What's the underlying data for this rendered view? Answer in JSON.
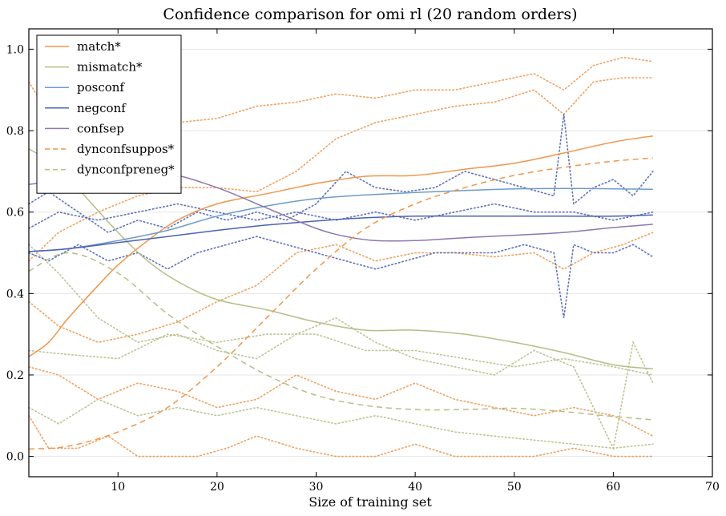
{
  "chart_data": {
    "type": "line",
    "title": "Confidence comparison for omi rl (20 random orders)",
    "xlabel": "Size of training set",
    "ylabel": "",
    "xlim": [
      1,
      70
    ],
    "ylim": [
      -0.05,
      1.05
    ],
    "xticks": [
      "10",
      "20",
      "30",
      "40",
      "50",
      "60",
      "70"
    ],
    "yticks": [
      "0.0",
      "0.2",
      "0.4",
      "0.6",
      "0.8",
      "1.0"
    ],
    "grid": true,
    "legend_position": "top-left",
    "series": [
      {
        "name": "match*",
        "color": "#f0954a",
        "dash": "solid",
        "x": [
          1,
          3,
          5,
          8,
          10,
          13,
          16,
          20,
          25,
          30,
          35,
          40,
          45,
          50,
          55,
          60,
          64
        ],
        "y": [
          0.245,
          0.28,
          0.34,
          0.42,
          0.47,
          0.53,
          0.58,
          0.62,
          0.645,
          0.67,
          0.688,
          0.69,
          0.705,
          0.72,
          0.745,
          0.772,
          0.787
        ]
      },
      {
        "name": "mismatch*",
        "color": "#b5bd86",
        "dash": "solid",
        "x": [
          1,
          4,
          7,
          10,
          13,
          16,
          20,
          25,
          30,
          35,
          40,
          45,
          50,
          55,
          60,
          64
        ],
        "y": [
          0.755,
          0.71,
          0.63,
          0.55,
          0.48,
          0.43,
          0.385,
          0.36,
          0.33,
          0.31,
          0.31,
          0.3,
          0.28,
          0.255,
          0.225,
          0.215
        ]
      },
      {
        "name": "posconf",
        "color": "#6d9cc8",
        "dash": "solid",
        "x": [
          1,
          5,
          10,
          15,
          20,
          25,
          30,
          35,
          40,
          45,
          50,
          55,
          60,
          64
        ],
        "y": [
          0.503,
          0.51,
          0.53,
          0.555,
          0.59,
          0.615,
          0.633,
          0.642,
          0.648,
          0.653,
          0.657,
          0.658,
          0.657,
          0.656
        ]
      },
      {
        "name": "negconf",
        "color": "#4b62b4",
        "dash": "solid",
        "x": [
          1,
          5,
          10,
          15,
          20,
          25,
          30,
          35,
          40,
          45,
          50,
          55,
          60,
          64
        ],
        "y": [
          0.503,
          0.51,
          0.525,
          0.54,
          0.555,
          0.568,
          0.578,
          0.586,
          0.59,
          0.59,
          0.59,
          0.59,
          0.59,
          0.593
        ]
      },
      {
        "name": "confsep",
        "color": "#8a77b0",
        "dash": "solid",
        "x": [
          1,
          5,
          10,
          15,
          20,
          25,
          30,
          33,
          36,
          40,
          45,
          50,
          55,
          60,
          64
        ],
        "y": [
          0.668,
          0.68,
          0.7,
          0.695,
          0.66,
          0.61,
          0.56,
          0.54,
          0.53,
          0.53,
          0.537,
          0.543,
          0.55,
          0.562,
          0.57
        ]
      },
      {
        "name": "dynconfsuppos*",
        "color": "#f0954a",
        "dash": "dashed",
        "x": [
          1,
          5,
          10,
          15,
          20,
          25,
          30,
          35,
          40,
          45,
          50,
          55,
          60,
          64
        ],
        "y": [
          0.018,
          0.025,
          0.06,
          0.12,
          0.22,
          0.34,
          0.46,
          0.56,
          0.62,
          0.66,
          0.69,
          0.71,
          0.725,
          0.733
        ]
      },
      {
        "name": "dynconfpreneg*",
        "color": "#b5bd86",
        "dash": "dashed",
        "x": [
          1,
          5,
          10,
          15,
          20,
          25,
          30,
          35,
          40,
          45,
          50,
          55,
          60,
          64
        ],
        "y": [
          0.455,
          0.5,
          0.45,
          0.35,
          0.27,
          0.2,
          0.15,
          0.125,
          0.115,
          0.115,
          0.118,
          0.11,
          0.098,
          0.09
        ]
      }
    ],
    "background_series": [
      {
        "name": "",
        "color": "#f0954a",
        "x": [
          1,
          4,
          8,
          12,
          16,
          20,
          24,
          28,
          32,
          36,
          40,
          44,
          48,
          52,
          55,
          58,
          61,
          64
        ],
        "y": [
          0.92,
          0.8,
          0.82,
          0.84,
          0.82,
          0.83,
          0.86,
          0.87,
          0.89,
          0.88,
          0.9,
          0.9,
          0.92,
          0.94,
          0.9,
          0.96,
          0.98,
          0.97
        ]
      },
      {
        "name": "",
        "color": "#f0954a",
        "x": [
          1,
          4,
          8,
          12,
          16,
          20,
          24,
          28,
          32,
          36,
          40,
          44,
          48,
          52,
          55,
          58,
          61,
          64
        ],
        "y": [
          0.48,
          0.55,
          0.6,
          0.64,
          0.66,
          0.66,
          0.65,
          0.7,
          0.78,
          0.82,
          0.84,
          0.86,
          0.87,
          0.9,
          0.84,
          0.92,
          0.93,
          0.93
        ]
      },
      {
        "name": "",
        "color": "#f0954a",
        "x": [
          1,
          4,
          8,
          12,
          16,
          20,
          24,
          28,
          32,
          36,
          40,
          44,
          48,
          52,
          55,
          58,
          61,
          64
        ],
        "y": [
          0.38,
          0.32,
          0.28,
          0.3,
          0.33,
          0.38,
          0.42,
          0.5,
          0.52,
          0.48,
          0.5,
          0.5,
          0.49,
          0.5,
          0.46,
          0.5,
          0.52,
          0.55
        ]
      },
      {
        "name": "",
        "color": "#f0954a",
        "x": [
          1,
          3,
          6,
          9,
          12,
          15,
          18,
          21,
          24,
          28,
          32,
          36,
          40,
          44,
          48,
          52,
          56,
          60,
          64
        ],
        "y": [
          0.1,
          0.02,
          0.02,
          0.05,
          0.0,
          0.0,
          0.0,
          0.02,
          0.05,
          0.02,
          0.0,
          0.0,
          0.03,
          0.0,
          0.0,
          0.0,
          0.02,
          0.0,
          0.0
        ]
      },
      {
        "name": "",
        "color": "#f0954a",
        "x": [
          1,
          4,
          8,
          12,
          16,
          20,
          24,
          28,
          32,
          36,
          40,
          44,
          48,
          52,
          56,
          60,
          64
        ],
        "y": [
          0.22,
          0.2,
          0.14,
          0.18,
          0.16,
          0.12,
          0.14,
          0.2,
          0.16,
          0.14,
          0.18,
          0.14,
          0.12,
          0.1,
          0.12,
          0.1,
          0.05
        ]
      },
      {
        "name": "",
        "color": "#b5bd86",
        "x": [
          1,
          4,
          8,
          12,
          16,
          20,
          24,
          28,
          32,
          36,
          40,
          44,
          48,
          52,
          56,
          60,
          62,
          64
        ],
        "y": [
          0.52,
          0.45,
          0.34,
          0.28,
          0.3,
          0.26,
          0.24,
          0.3,
          0.34,
          0.28,
          0.24,
          0.22,
          0.2,
          0.26,
          0.22,
          0.02,
          0.28,
          0.18
        ]
      },
      {
        "name": "",
        "color": "#b5bd86",
        "x": [
          1,
          4,
          8,
          12,
          16,
          20,
          24,
          28,
          32,
          36,
          40,
          44,
          48,
          52,
          56,
          60,
          64
        ],
        "y": [
          0.12,
          0.08,
          0.14,
          0.1,
          0.12,
          0.1,
          0.12,
          0.1,
          0.08,
          0.1,
          0.08,
          0.06,
          0.05,
          0.04,
          0.03,
          0.02,
          0.03
        ]
      },
      {
        "name": "",
        "color": "#b5bd86",
        "x": [
          1,
          5,
          10,
          15,
          20,
          25,
          30,
          35,
          40,
          45,
          50,
          55,
          60,
          64
        ],
        "y": [
          0.26,
          0.25,
          0.24,
          0.3,
          0.28,
          0.3,
          0.3,
          0.26,
          0.26,
          0.24,
          0.22,
          0.24,
          0.22,
          0.2
        ]
      },
      {
        "name": "",
        "color": "#4b62b4",
        "x": [
          1,
          3,
          6,
          9,
          12,
          15,
          18,
          21,
          24,
          27,
          30,
          33,
          36,
          39,
          42,
          45,
          48,
          51,
          54,
          55,
          56,
          58,
          60,
          62,
          64
        ],
        "y": [
          0.62,
          0.65,
          0.6,
          0.55,
          0.58,
          0.56,
          0.6,
          0.58,
          0.6,
          0.58,
          0.62,
          0.7,
          0.66,
          0.65,
          0.66,
          0.7,
          0.68,
          0.66,
          0.64,
          0.84,
          0.62,
          0.66,
          0.68,
          0.64,
          0.7
        ]
      },
      {
        "name": "",
        "color": "#4b62b4",
        "x": [
          1,
          3,
          6,
          9,
          12,
          15,
          18,
          21,
          24,
          27,
          30,
          33,
          36,
          39,
          42,
          45,
          48,
          51,
          54,
          55,
          56,
          58,
          60,
          62,
          64
        ],
        "y": [
          0.5,
          0.48,
          0.52,
          0.48,
          0.5,
          0.46,
          0.5,
          0.52,
          0.54,
          0.52,
          0.5,
          0.48,
          0.46,
          0.48,
          0.5,
          0.5,
          0.5,
          0.52,
          0.5,
          0.34,
          0.52,
          0.5,
          0.5,
          0.52,
          0.49
        ]
      },
      {
        "name": "",
        "color": "#4b62b4",
        "x": [
          1,
          4,
          8,
          12,
          16,
          20,
          24,
          28,
          32,
          36,
          40,
          44,
          48,
          52,
          56,
          60,
          64
        ],
        "y": [
          0.56,
          0.6,
          0.58,
          0.6,
          0.62,
          0.6,
          0.58,
          0.6,
          0.58,
          0.6,
          0.58,
          0.6,
          0.62,
          0.6,
          0.6,
          0.58,
          0.6
        ]
      }
    ]
  }
}
